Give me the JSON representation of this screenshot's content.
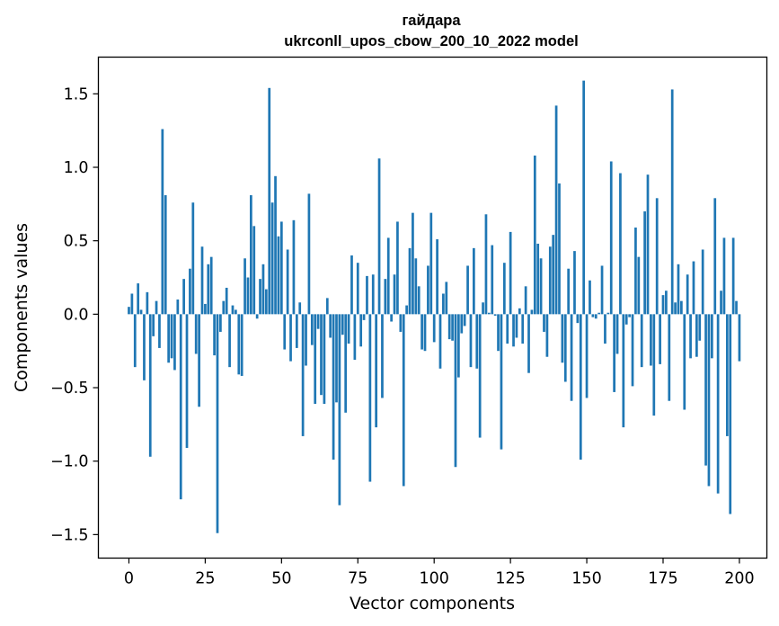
{
  "chart_data": {
    "type": "bar",
    "title": "гайдара",
    "subtitle": "ukrconll_upos_cbow_200_10_2022 model",
    "xlabel": "Vector components",
    "ylabel": "Components values",
    "xlim": [
      -10,
      209
    ],
    "ylim": [
      -1.66,
      1.75
    ],
    "xticks": [
      0,
      25,
      50,
      75,
      100,
      125,
      150,
      175,
      200
    ],
    "yticks": [
      -1.5,
      -1.0,
      -0.5,
      0.0,
      0.5,
      1.0,
      1.5
    ],
    "ytick_labels": [
      "−1.5",
      "−1.0",
      "−0.5",
      "0.0",
      "0.5",
      "1.0",
      "1.5"
    ],
    "color": "#1f77b4",
    "grid": false,
    "values": [
      0.05,
      0.14,
      -0.36,
      0.21,
      0.03,
      -0.45,
      0.15,
      -0.97,
      -0.15,
      0.09,
      -0.23,
      1.26,
      0.81,
      -0.33,
      -0.3,
      -0.38,
      0.1,
      -1.26,
      0.24,
      -0.91,
      0.31,
      0.76,
      -0.27,
      -0.63,
      0.46,
      0.07,
      0.34,
      0.39,
      -0.28,
      -1.49,
      -0.12,
      0.09,
      0.18,
      -0.36,
      0.06,
      0.03,
      -0.41,
      -0.42,
      0.38,
      0.25,
      0.81,
      0.6,
      -0.03,
      0.24,
      0.34,
      0.17,
      1.54,
      0.76,
      0.94,
      0.53,
      0.63,
      -0.24,
      0.44,
      -0.32,
      0.64,
      -0.23,
      0.08,
      -0.83,
      -0.35,
      0.82,
      -0.21,
      -0.61,
      -0.1,
      -0.55,
      -0.61,
      0.11,
      -0.16,
      -0.99,
      -0.6,
      -1.3,
      -0.14,
      -0.67,
      -0.2,
      0.4,
      -0.31,
      0.35,
      -0.22,
      -0.04,
      0.26,
      -1.14,
      0.27,
      -0.77,
      1.06,
      -0.57,
      0.24,
      0.52,
      -0.05,
      0.27,
      0.63,
      -0.12,
      -1.17,
      0.06,
      0.45,
      0.69,
      0.38,
      0.19,
      -0.24,
      -0.25,
      0.33,
      0.69,
      -0.19,
      0.51,
      -0.37,
      0.14,
      0.22,
      -0.17,
      -0.18,
      -1.04,
      -0.43,
      -0.13,
      -0.08,
      0.33,
      -0.36,
      0.45,
      -0.37,
      -0.84,
      0.08,
      0.68,
      0.01,
      0.47,
      -0.01,
      -0.25,
      -0.92,
      0.35,
      -0.2,
      0.56,
      -0.22,
      -0.16,
      0.04,
      -0.2,
      0.19,
      -0.4,
      0.03,
      1.08,
      0.48,
      0.38,
      -0.12,
      -0.29,
      0.46,
      0.54,
      1.42,
      0.89,
      -0.33,
      -0.46,
      0.31,
      -0.59,
      0.43,
      -0.06,
      -0.99,
      1.59,
      -0.57,
      0.23,
      -0.02,
      -0.03,
      0.01,
      0.33,
      -0.2,
      0.01,
      1.04,
      -0.53,
      -0.27,
      0.96,
      -0.77,
      -0.07,
      -0.02,
      -0.49,
      0.59,
      0.39,
      -0.36,
      0.7,
      0.95,
      -0.35,
      -0.69,
      0.79,
      -0.34,
      0.13,
      0.16,
      -0.59,
      1.53,
      0.08,
      0.34,
      0.09,
      -0.65,
      0.27,
      -0.3,
      0.36,
      -0.29,
      -0.18,
      0.44,
      -1.03,
      -1.17,
      -0.3,
      0.79,
      -1.22,
      0.16,
      0.52,
      -0.83,
      -1.36,
      0.52,
      0.09,
      -0.32
    ]
  }
}
